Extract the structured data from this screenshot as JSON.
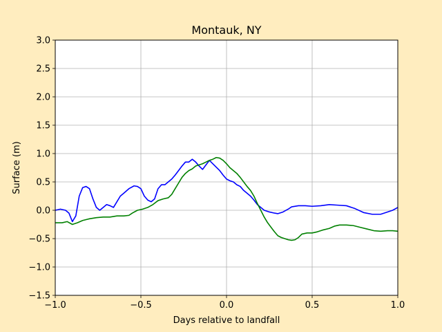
{
  "chart_data": {
    "type": "line",
    "title": "Montauk, NY",
    "xlabel": "Days relative to landfall",
    "ylabel": "Surface (m)",
    "xlim": [
      -1.0,
      1.0
    ],
    "ylim": [
      -1.5,
      3.0
    ],
    "xticks": [
      -1.0,
      -0.5,
      0.0,
      0.5,
      1.0
    ],
    "xtick_labels": [
      "−1.0",
      "−0.5",
      "0.0",
      "0.5",
      "1.0"
    ],
    "yticks": [
      -1.5,
      -1.0,
      -0.5,
      0.0,
      0.5,
      1.0,
      1.5,
      2.0,
      2.5,
      3.0
    ],
    "ytick_labels": [
      "−1.5",
      "−1.0",
      "−0.5",
      "0.0",
      "0.5",
      "1.0",
      "1.5",
      "2.0",
      "2.5",
      "3.0"
    ],
    "grid": true,
    "background": "#ffffff",
    "figure_background": "#ffedbf",
    "series": [
      {
        "color": "#0000ff",
        "points": [
          [
            -1.0,
            0.0
          ],
          [
            -0.97,
            0.02
          ],
          [
            -0.94,
            0.0
          ],
          [
            -0.92,
            -0.05
          ],
          [
            -0.9,
            -0.2
          ],
          [
            -0.88,
            -0.1
          ],
          [
            -0.86,
            0.25
          ],
          [
            -0.84,
            0.4
          ],
          [
            -0.82,
            0.42
          ],
          [
            -0.8,
            0.38
          ],
          [
            -0.78,
            0.2
          ],
          [
            -0.76,
            0.05
          ],
          [
            -0.74,
            0.0
          ],
          [
            -0.72,
            0.05
          ],
          [
            -0.7,
            0.1
          ],
          [
            -0.68,
            0.08
          ],
          [
            -0.66,
            0.05
          ],
          [
            -0.64,
            0.15
          ],
          [
            -0.62,
            0.25
          ],
          [
            -0.6,
            0.3
          ],
          [
            -0.57,
            0.38
          ],
          [
            -0.54,
            0.43
          ],
          [
            -0.52,
            0.42
          ],
          [
            -0.5,
            0.38
          ],
          [
            -0.48,
            0.25
          ],
          [
            -0.46,
            0.18
          ],
          [
            -0.44,
            0.15
          ],
          [
            -0.42,
            0.2
          ],
          [
            -0.4,
            0.38
          ],
          [
            -0.38,
            0.45
          ],
          [
            -0.36,
            0.45
          ],
          [
            -0.34,
            0.5
          ],
          [
            -0.32,
            0.55
          ],
          [
            -0.3,
            0.62
          ],
          [
            -0.28,
            0.7
          ],
          [
            -0.26,
            0.78
          ],
          [
            -0.24,
            0.85
          ],
          [
            -0.22,
            0.85
          ],
          [
            -0.2,
            0.9
          ],
          [
            -0.18,
            0.85
          ],
          [
            -0.16,
            0.78
          ],
          [
            -0.14,
            0.72
          ],
          [
            -0.12,
            0.8
          ],
          [
            -0.1,
            0.88
          ],
          [
            -0.08,
            0.82
          ],
          [
            -0.06,
            0.76
          ],
          [
            -0.04,
            0.7
          ],
          [
            -0.02,
            0.62
          ],
          [
            0.0,
            0.55
          ],
          [
            0.02,
            0.52
          ],
          [
            0.04,
            0.5
          ],
          [
            0.06,
            0.45
          ],
          [
            0.08,
            0.42
          ],
          [
            0.1,
            0.35
          ],
          [
            0.12,
            0.3
          ],
          [
            0.14,
            0.25
          ],
          [
            0.16,
            0.18
          ],
          [
            0.18,
            0.1
          ],
          [
            0.2,
            0.05
          ],
          [
            0.22,
            0.0
          ],
          [
            0.25,
            -0.03
          ],
          [
            0.28,
            -0.05
          ],
          [
            0.3,
            -0.06
          ],
          [
            0.33,
            -0.03
          ],
          [
            0.36,
            0.02
          ],
          [
            0.38,
            0.06
          ],
          [
            0.42,
            0.08
          ],
          [
            0.46,
            0.08
          ],
          [
            0.5,
            0.07
          ],
          [
            0.55,
            0.08
          ],
          [
            0.6,
            0.1
          ],
          [
            0.65,
            0.09
          ],
          [
            0.7,
            0.08
          ],
          [
            0.75,
            0.03
          ],
          [
            0.8,
            -0.04
          ],
          [
            0.85,
            -0.07
          ],
          [
            0.9,
            -0.07
          ],
          [
            0.94,
            -0.03
          ],
          [
            0.97,
            0.0
          ],
          [
            1.0,
            0.05
          ]
        ]
      },
      {
        "color": "#008000",
        "points": [
          [
            -1.0,
            -0.22
          ],
          [
            -0.96,
            -0.22
          ],
          [
            -0.93,
            -0.2
          ],
          [
            -0.9,
            -0.25
          ],
          [
            -0.87,
            -0.22
          ],
          [
            -0.84,
            -0.18
          ],
          [
            -0.8,
            -0.15
          ],
          [
            -0.76,
            -0.13
          ],
          [
            -0.72,
            -0.12
          ],
          [
            -0.68,
            -0.12
          ],
          [
            -0.64,
            -0.1
          ],
          [
            -0.6,
            -0.1
          ],
          [
            -0.57,
            -0.09
          ],
          [
            -0.55,
            -0.05
          ],
          [
            -0.52,
            0.0
          ],
          [
            -0.49,
            0.02
          ],
          [
            -0.46,
            0.05
          ],
          [
            -0.43,
            0.1
          ],
          [
            -0.4,
            0.17
          ],
          [
            -0.37,
            0.2
          ],
          [
            -0.34,
            0.22
          ],
          [
            -0.32,
            0.28
          ],
          [
            -0.3,
            0.38
          ],
          [
            -0.28,
            0.48
          ],
          [
            -0.26,
            0.58
          ],
          [
            -0.24,
            0.65
          ],
          [
            -0.22,
            0.7
          ],
          [
            -0.2,
            0.73
          ],
          [
            -0.18,
            0.78
          ],
          [
            -0.16,
            0.8
          ],
          [
            -0.14,
            0.82
          ],
          [
            -0.12,
            0.85
          ],
          [
            -0.1,
            0.88
          ],
          [
            -0.08,
            0.9
          ],
          [
            -0.06,
            0.93
          ],
          [
            -0.04,
            0.92
          ],
          [
            -0.02,
            0.88
          ],
          [
            0.0,
            0.82
          ],
          [
            0.02,
            0.75
          ],
          [
            0.04,
            0.7
          ],
          [
            0.06,
            0.65
          ],
          [
            0.08,
            0.58
          ],
          [
            0.1,
            0.5
          ],
          [
            0.12,
            0.42
          ],
          [
            0.14,
            0.35
          ],
          [
            0.16,
            0.25
          ],
          [
            0.18,
            0.12
          ],
          [
            0.2,
            0.0
          ],
          [
            0.22,
            -0.12
          ],
          [
            0.24,
            -0.22
          ],
          [
            0.26,
            -0.3
          ],
          [
            0.28,
            -0.38
          ],
          [
            0.3,
            -0.45
          ],
          [
            0.32,
            -0.48
          ],
          [
            0.34,
            -0.5
          ],
          [
            0.36,
            -0.52
          ],
          [
            0.38,
            -0.53
          ],
          [
            0.4,
            -0.52
          ],
          [
            0.42,
            -0.48
          ],
          [
            0.44,
            -0.42
          ],
          [
            0.47,
            -0.4
          ],
          [
            0.5,
            -0.4
          ],
          [
            0.53,
            -0.38
          ],
          [
            0.56,
            -0.35
          ],
          [
            0.6,
            -0.32
          ],
          [
            0.63,
            -0.28
          ],
          [
            0.66,
            -0.26
          ],
          [
            0.7,
            -0.26
          ],
          [
            0.74,
            -0.27
          ],
          [
            0.78,
            -0.3
          ],
          [
            0.82,
            -0.33
          ],
          [
            0.86,
            -0.36
          ],
          [
            0.9,
            -0.37
          ],
          [
            0.94,
            -0.36
          ],
          [
            0.97,
            -0.36
          ],
          [
            1.0,
            -0.37
          ]
        ]
      }
    ]
  }
}
